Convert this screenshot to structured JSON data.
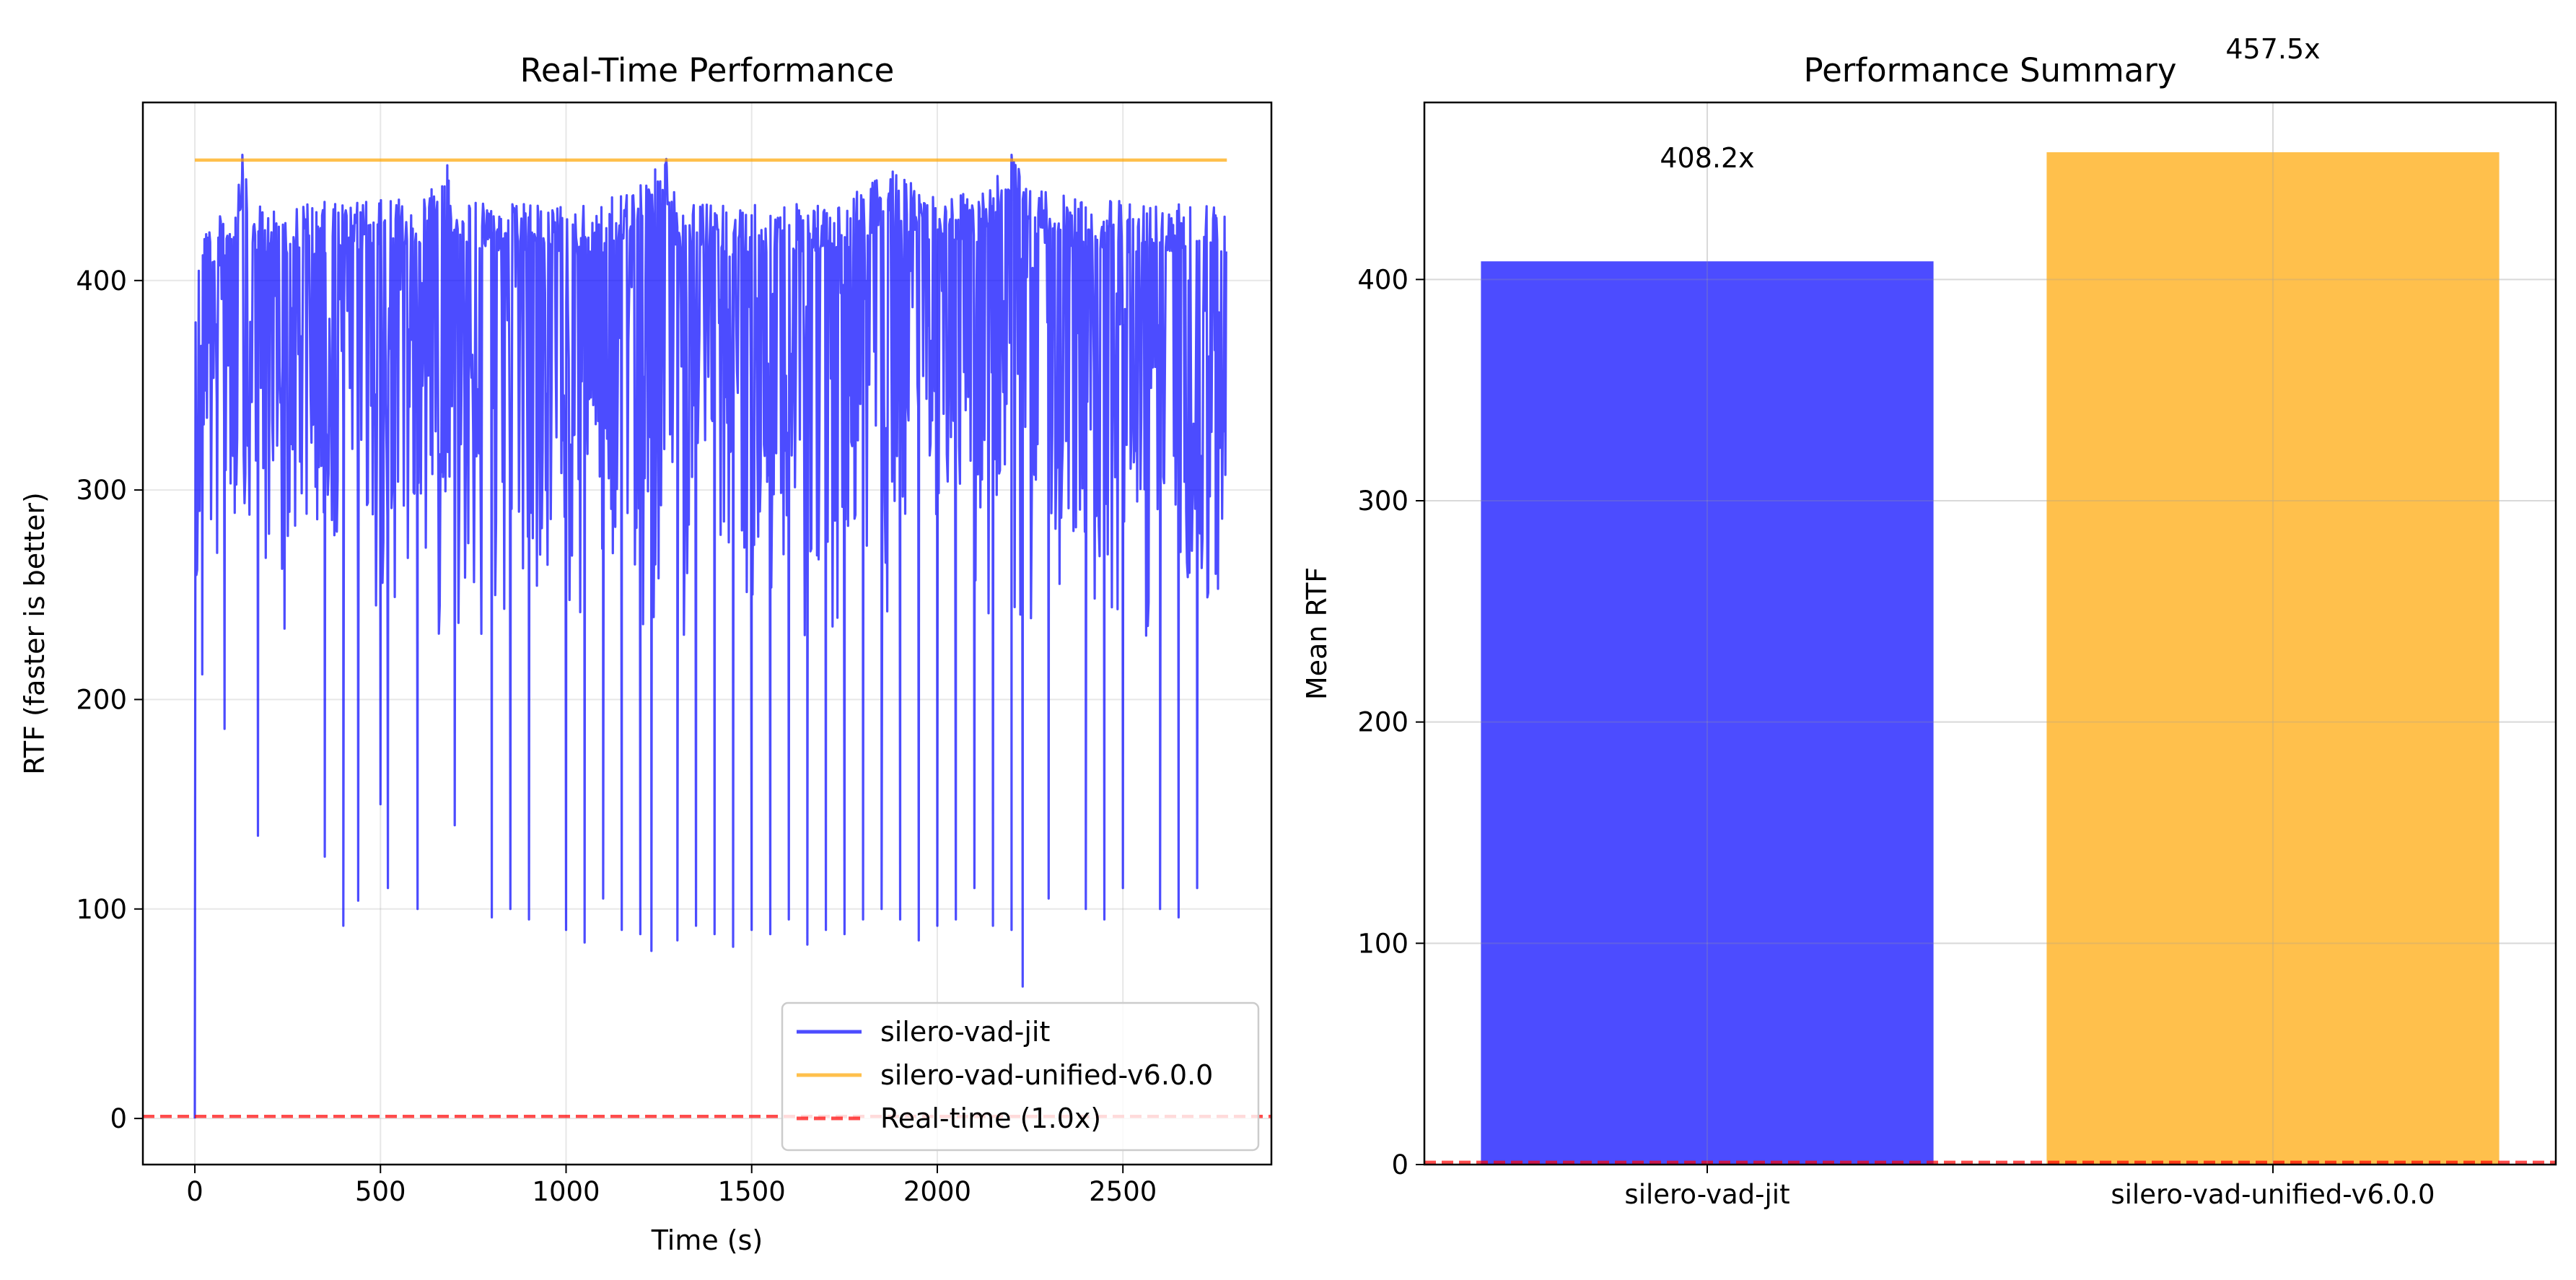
{
  "colors": {
    "jit": "#0000ff",
    "unified": "#ffa500",
    "realtime": "#ff0000",
    "grid": "#b0b0b0"
  },
  "chart_data": [
    {
      "type": "line",
      "title": "Real-Time Performance",
      "xlabel": "Time (s)",
      "ylabel": "RTF (faster is better)",
      "xlim": [
        -140,
        2900
      ],
      "ylim": [
        -22,
        485
      ],
      "xticks": [
        0,
        500,
        1000,
        1500,
        2000,
        2500
      ],
      "yticks": [
        0,
        100,
        200,
        300,
        400
      ],
      "grid": true,
      "legend_position": "lower-right",
      "series": [
        {
          "name": "silero-vad-jit",
          "color": "#0000ff",
          "note_band": [
            0,
            2780
          ],
          "upper_envelope": [
            [
              0,
              0
            ],
            [
              5,
              420
            ],
            [
              15,
              432
            ],
            [
              60,
              430
            ],
            [
              100,
              436
            ],
            [
              128,
              460
            ],
            [
              150,
              435
            ],
            [
              250,
              437
            ],
            [
              400,
              438
            ],
            [
              600,
              439
            ],
            [
              680,
              455
            ],
            [
              700,
              438
            ],
            [
              900,
              437
            ],
            [
              1000,
              436
            ],
            [
              1100,
              437
            ],
            [
              1240,
              453
            ],
            [
              1270,
              458
            ],
            [
              1300,
              437
            ],
            [
              1500,
              436
            ],
            [
              1640,
              437
            ],
            [
              1700,
              435
            ],
            [
              1880,
              452
            ],
            [
              2000,
              441
            ],
            [
              2100,
              442
            ],
            [
              2200,
              460
            ],
            [
              2300,
              441
            ],
            [
              2400,
              440
            ],
            [
              2500,
              438
            ],
            [
              2600,
              438
            ],
            [
              2700,
              441
            ],
            [
              2780,
              434
            ]
          ],
          "lower_spikes": [
            [
              20,
              212
            ],
            [
              60,
              270
            ],
            [
              80,
              186
            ],
            [
              170,
              135
            ],
            [
              350,
              125
            ],
            [
              400,
              92
            ],
            [
              440,
              104
            ],
            [
              500,
              150
            ],
            [
              520,
              110
            ],
            [
              600,
              100
            ],
            [
              700,
              140
            ],
            [
              800,
              96
            ],
            [
              850,
              100
            ],
            [
              900,
              95
            ],
            [
              1000,
              90
            ],
            [
              1050,
              84
            ],
            [
              1100,
              105
            ],
            [
              1150,
              90
            ],
            [
              1200,
              88
            ],
            [
              1230,
              80
            ],
            [
              1300,
              85
            ],
            [
              1350,
              92
            ],
            [
              1400,
              88
            ],
            [
              1450,
              82
            ],
            [
              1500,
              90
            ],
            [
              1550,
              88
            ],
            [
              1600,
              95
            ],
            [
              1650,
              83
            ],
            [
              1700,
              90
            ],
            [
              1750,
              88
            ],
            [
              1800,
              95
            ],
            [
              1850,
              100
            ],
            [
              1900,
              95
            ],
            [
              1950,
              85
            ],
            [
              2000,
              92
            ],
            [
              2050,
              95
            ],
            [
              2100,
              110
            ],
            [
              2150,
              92
            ],
            [
              2200,
              90
            ],
            [
              2230,
              63
            ],
            [
              2300,
              105
            ],
            [
              2400,
              100
            ],
            [
              2450,
              95
            ],
            [
              2500,
              110
            ],
            [
              2600,
              100
            ],
            [
              2650,
              96
            ],
            [
              2700,
              110
            ],
            [
              2750,
              260
            ]
          ]
        },
        {
          "name": "silero-vad-unified-v6.0.0",
          "color": "#ffa500",
          "points": [
            [
              0,
              457.5
            ],
            [
              2780,
              457.5
            ]
          ]
        },
        {
          "name": "Real-time (1.0x)",
          "color": "#ff0000",
          "style": "dashed",
          "value": 1.0
        }
      ]
    },
    {
      "type": "bar",
      "title": "Performance Summary",
      "xlabel": "",
      "ylabel": "Mean RTF",
      "categories": [
        "silero-vad-jit",
        "silero-vad-unified-v6.0.0"
      ],
      "values": [
        408.2,
        457.5
      ],
      "value_labels": [
        "408.2x",
        "457.5x"
      ],
      "bar_colors": [
        "#0000ff",
        "#ffa500"
      ],
      "ylim": [
        0,
        480
      ],
      "yticks": [
        0,
        100,
        200,
        300,
        400
      ],
      "grid": true,
      "reference_line": {
        "value": 1.0,
        "color": "#ff0000",
        "style": "dashed"
      }
    }
  ]
}
